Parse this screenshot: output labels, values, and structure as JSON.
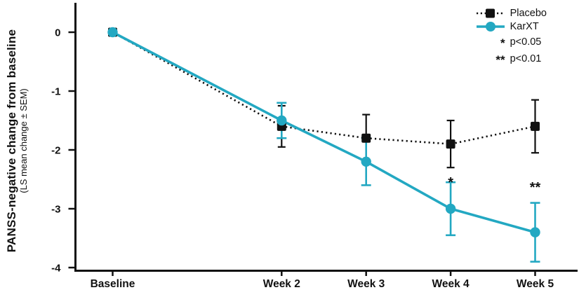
{
  "y_axis": {
    "title": "PANSS-negative change from baseline",
    "subtitle": "(LS mean change ± SEM)",
    "tick_labels": [
      "0",
      "-1",
      "-2",
      "-3",
      "-4"
    ]
  },
  "x_axis": {
    "tick_labels": [
      "Baseline",
      "Week 2",
      "Week 3",
      "Week 4",
      "Week 5"
    ]
  },
  "legend": {
    "placebo_label": "Placebo",
    "karxt_label": "KarXT",
    "sig_entries": [
      {
        "symbol": "*",
        "label": "p<0.05"
      },
      {
        "symbol": "**",
        "label": "p<0.01"
      }
    ]
  },
  "colors": {
    "placebo": "#111111",
    "karxt": "#23A8C2"
  },
  "chart_data": {
    "type": "line",
    "title": "",
    "x_categories": [
      "Baseline",
      "Week 2",
      "Week 3",
      "Week 4",
      "Week 5"
    ],
    "x_weeks": [
      0,
      2,
      3,
      4,
      5
    ],
    "ylabel": "PANSS-negative change from baseline (LS mean change ± SEM)",
    "ylim": [
      -4,
      0.4
    ],
    "y_ticks": [
      0,
      -1,
      -2,
      -3,
      -4
    ],
    "grid": false,
    "legend_position": "top-right",
    "series": [
      {
        "name": "Placebo",
        "color": "#111111",
        "marker": "square",
        "line_style": "dotted",
        "values": [
          0,
          -1.6,
          -1.8,
          -1.9,
          -1.6
        ],
        "sem": [
          0,
          0.35,
          0.4,
          0.4,
          0.45
        ]
      },
      {
        "name": "KarXT",
        "color": "#23A8C2",
        "marker": "circle",
        "line_style": "solid",
        "values": [
          0,
          -1.5,
          -2.2,
          -3.0,
          -3.4
        ],
        "sem": [
          0,
          0.3,
          0.4,
          0.45,
          0.5
        ]
      }
    ],
    "annotations": [
      {
        "symbol": "*",
        "week": 4,
        "significance": "p<0.05"
      },
      {
        "symbol": "**",
        "week": 5,
        "significance": "p<0.01"
      }
    ]
  }
}
